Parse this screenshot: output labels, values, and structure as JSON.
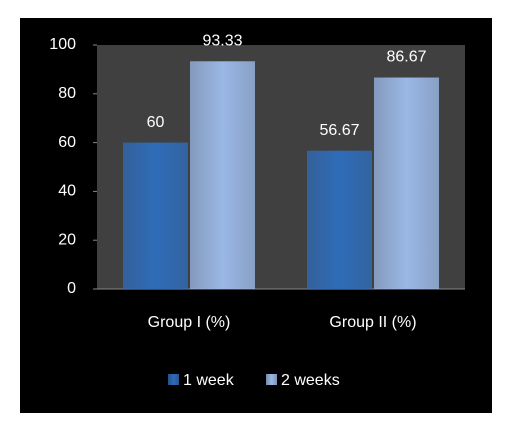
{
  "chart_data": {
    "type": "bar",
    "categories": [
      "Group I (%)",
      "Group II (%)"
    ],
    "series": [
      {
        "name": "1 week",
        "color": "#2f6cb8",
        "values": [
          60,
          56.67
        ]
      },
      {
        "name": "2 weeks",
        "color": "#9ab8e6",
        "values": [
          93.33,
          86.67
        ]
      }
    ],
    "ylim": [
      0,
      100
    ],
    "yticks": [
      0,
      20,
      40,
      60,
      80,
      100
    ],
    "legend": "bottom"
  }
}
